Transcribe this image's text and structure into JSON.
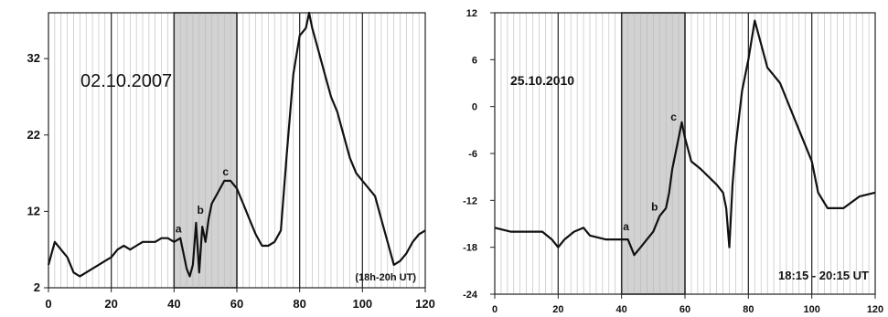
{
  "chart_data": [
    {
      "type": "line",
      "date_label": "02.10.2007",
      "time_label": "(18h-20h UT)",
      "xlim": [
        0,
        120
      ],
      "ylim": [
        2,
        38
      ],
      "x_ticks": [
        0,
        20,
        40,
        60,
        80,
        100,
        120
      ],
      "y_ticks": [
        2,
        12,
        22,
        32
      ],
      "grid": "vertical lines",
      "highlight": [
        40,
        60
      ],
      "points": [
        {
          "label": "a",
          "x": 42,
          "y": 8.5
        },
        {
          "label": "b",
          "x": 49,
          "y": 11
        },
        {
          "label": "c",
          "x": 57,
          "y": 16
        }
      ],
      "series": [
        {
          "x": [
            0,
            2,
            4,
            6,
            8,
            10,
            12,
            14,
            16,
            18,
            20,
            22,
            24,
            26,
            28,
            30,
            32,
            34,
            36,
            38,
            40,
            42,
            44,
            45,
            46,
            47,
            48,
            49,
            50,
            51,
            52,
            54,
            56,
            58,
            60,
            62,
            64,
            66,
            68,
            70,
            72,
            74,
            76,
            78,
            80,
            82,
            83,
            84,
            86,
            88,
            90,
            92,
            94,
            96,
            98,
            100,
            102,
            104,
            106,
            108,
            110,
            112,
            114,
            116,
            118,
            120
          ],
          "y": [
            5,
            8,
            7,
            6,
            4,
            3.5,
            4,
            4.5,
            5,
            5.5,
            6,
            7,
            7.5,
            7,
            7.5,
            8,
            8,
            8,
            8.5,
            8.5,
            8,
            8.5,
            4.5,
            3.5,
            5,
            10.5,
            4,
            10,
            8,
            11,
            13,
            14.5,
            16,
            16,
            15,
            13,
            11,
            9,
            7.5,
            7.5,
            8,
            9.5,
            20,
            30,
            35,
            36,
            38,
            36,
            33,
            30,
            27,
            25,
            22,
            19,
            17,
            16,
            15,
            14,
            11,
            8,
            5,
            5.5,
            6.5,
            8,
            9,
            9.5
          ]
        }
      ]
    },
    {
      "type": "line",
      "date_label": "25.10.2010",
      "time_label": "18:15 - 20:15 UT",
      "xlim": [
        0,
        120
      ],
      "ylim": [
        -24,
        12
      ],
      "x_ticks": [
        0,
        20,
        40,
        60,
        80,
        100,
        120
      ],
      "y_ticks": [
        12,
        6,
        0,
        -6,
        -12,
        -18,
        -24
      ],
      "grid": "vertical lines",
      "highlight": [
        40,
        60
      ],
      "points": [
        {
          "label": "a",
          "x": 42,
          "y": -16.5
        },
        {
          "label": "b",
          "x": 51,
          "y": -14
        },
        {
          "label": "c",
          "x": 57,
          "y": -2.5
        }
      ],
      "series": [
        {
          "x": [
            0,
            5,
            10,
            15,
            18,
            20,
            22,
            25,
            28,
            30,
            35,
            40,
            42,
            43,
            44,
            46,
            48,
            50,
            52,
            54,
            55,
            56,
            57,
            58,
            59,
            60,
            62,
            65,
            70,
            72,
            73,
            74,
            75,
            76,
            78,
            80,
            82,
            84,
            86,
            88,
            90,
            92,
            95,
            98,
            100,
            102,
            105,
            110,
            115,
            120
          ],
          "y": [
            -15.5,
            -16,
            -16,
            -16,
            -17,
            -18,
            -17,
            -16,
            -15.5,
            -16.5,
            -17,
            -17,
            -17,
            -18,
            -19,
            -18,
            -17,
            -16,
            -14,
            -13,
            -11,
            -8,
            -6,
            -4,
            -2,
            -4,
            -7,
            -8,
            -10,
            -11,
            -13,
            -18,
            -10,
            -5,
            2,
            6,
            11,
            8,
            5,
            4,
            3,
            1,
            -2,
            -5,
            -7,
            -11,
            -13,
            -13,
            -11.5,
            -11
          ]
        }
      ]
    }
  ]
}
